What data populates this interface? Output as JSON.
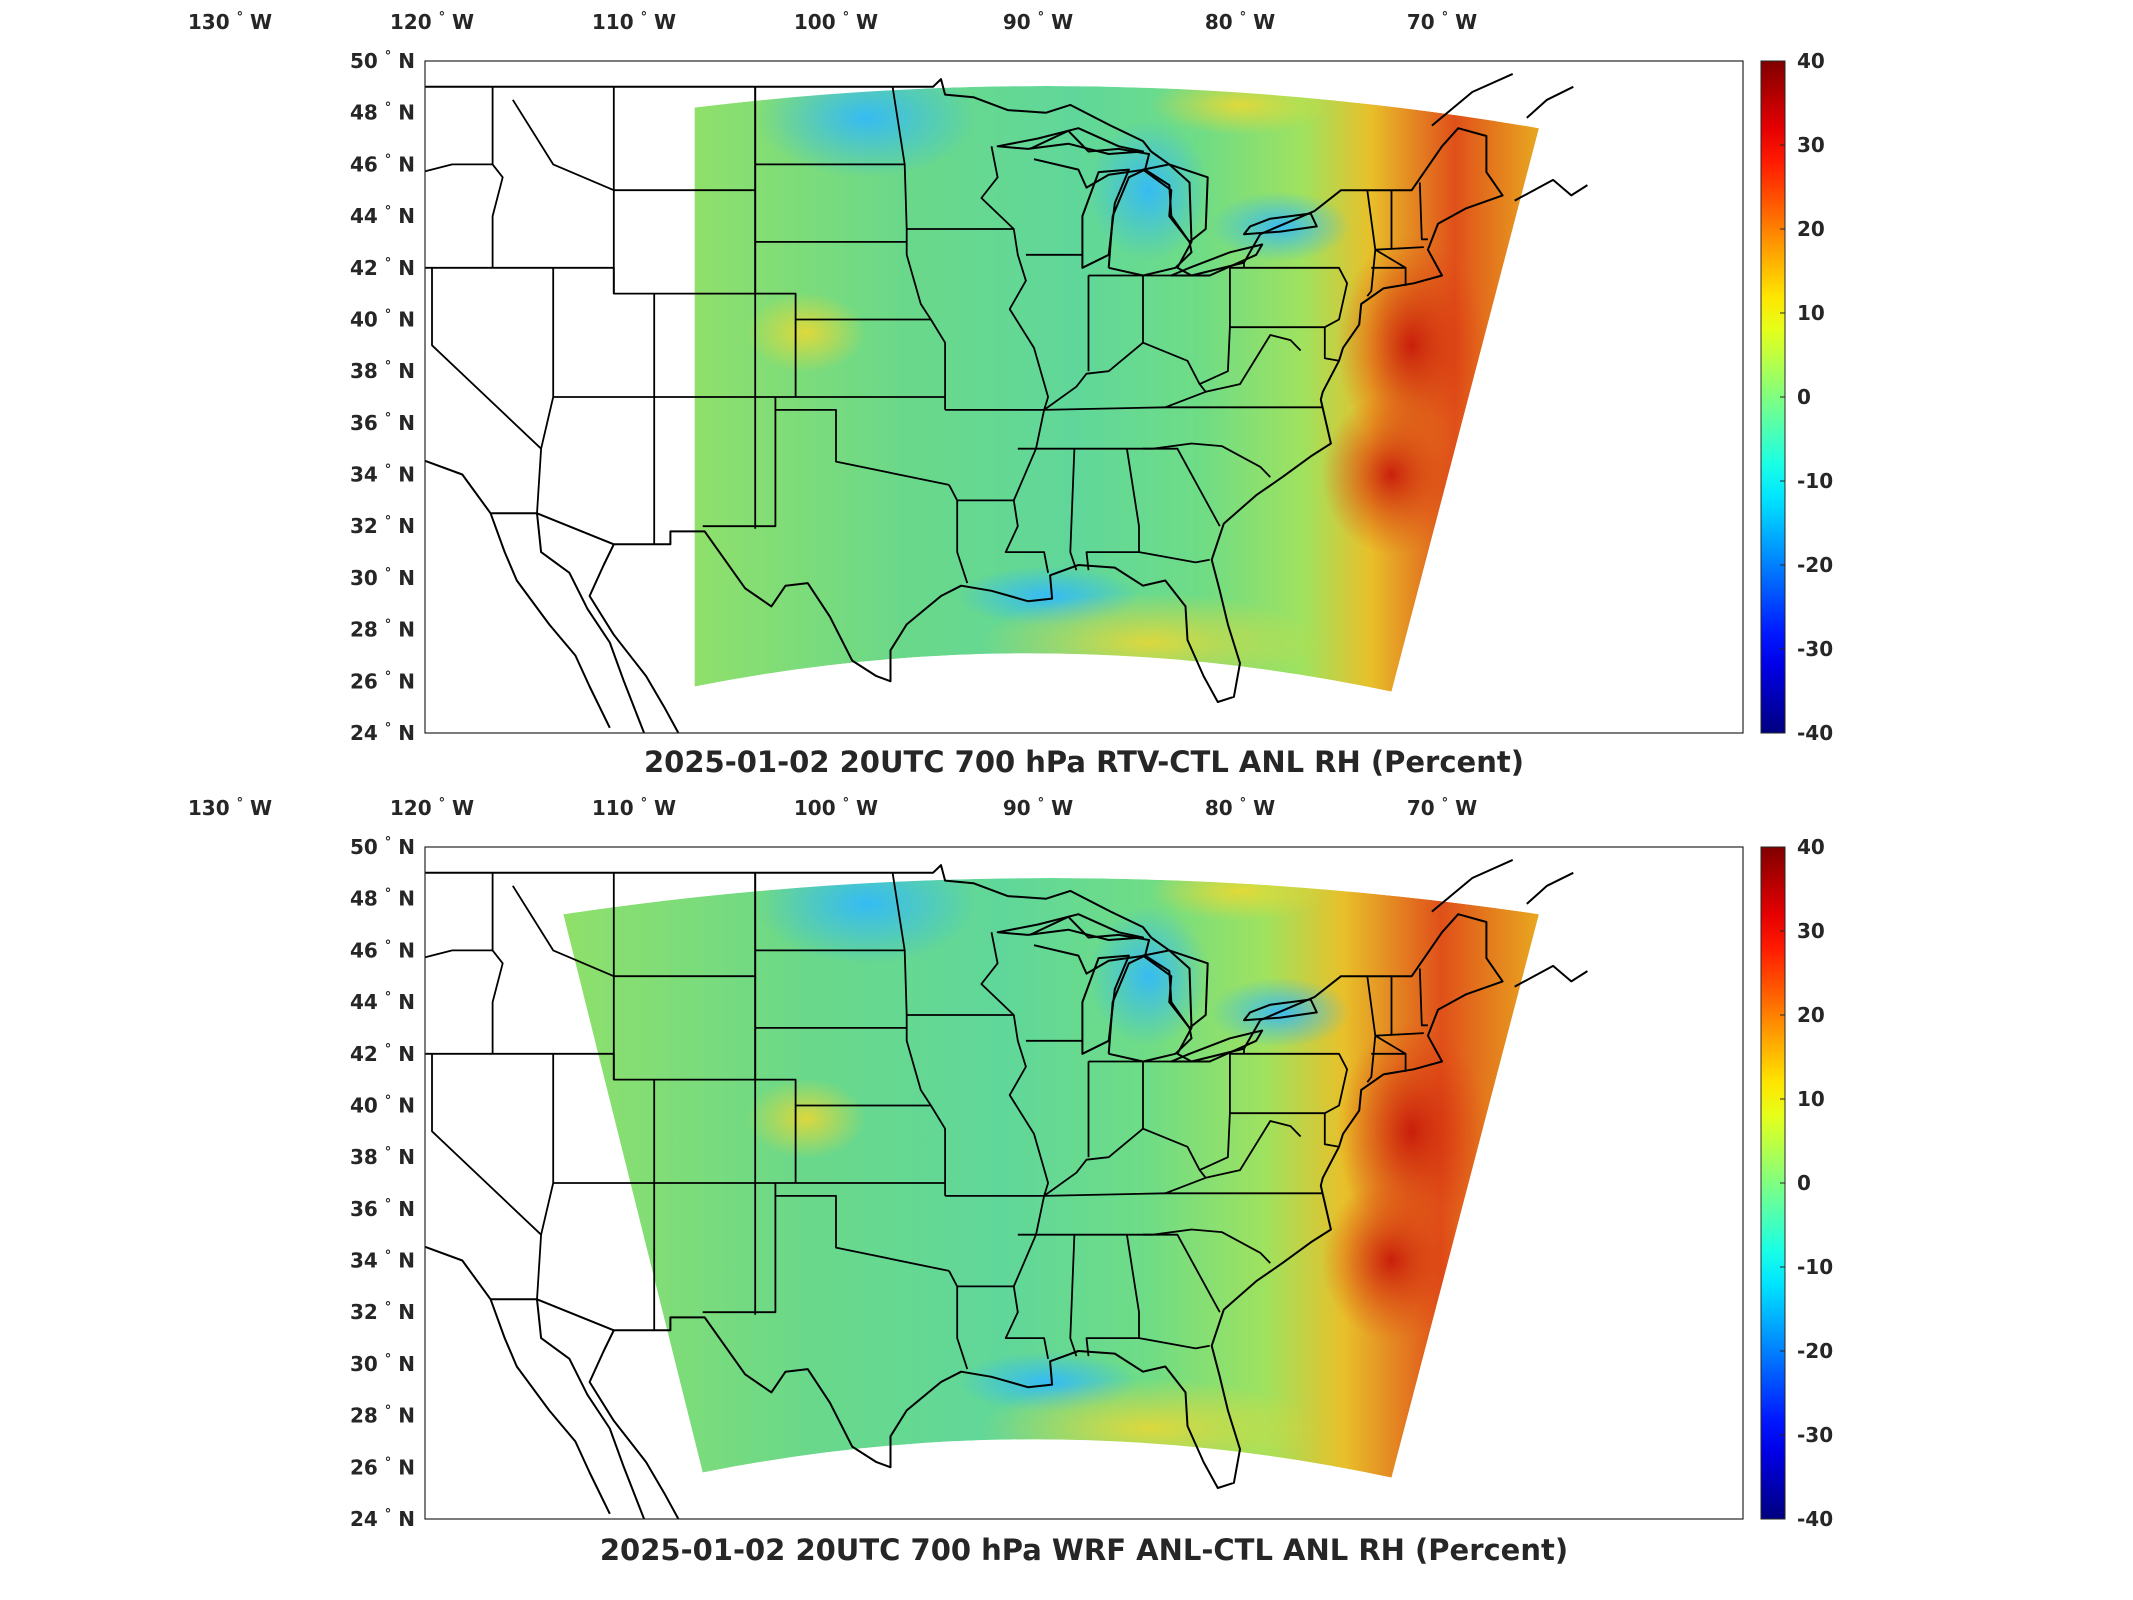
{
  "panels": [
    {
      "title": "2025-01-02 20UTC 700 hPa RTV-CTL ANL RH (Percent)",
      "domain_extent": "narrow"
    },
    {
      "title": "2025-01-02 20UTC 700 hPa WRF ANL-CTL ANL RH (Percent)",
      "domain_extent": "wide"
    }
  ],
  "axes": {
    "lon_ticks": [
      {
        "value": -130,
        "deg": "130",
        "hem": "W"
      },
      {
        "value": -120,
        "deg": "120",
        "hem": "W"
      },
      {
        "value": -110,
        "deg": "110",
        "hem": "W"
      },
      {
        "value": -100,
        "deg": "100",
        "hem": "W"
      },
      {
        "value": -90,
        "deg": "90",
        "hem": "W"
      },
      {
        "value": -80,
        "deg": "80",
        "hem": "W"
      },
      {
        "value": -70,
        "deg": "70",
        "hem": "W"
      }
    ],
    "lat_ticks": [
      {
        "value": 50,
        "deg": "50",
        "hem": "N"
      },
      {
        "value": 48,
        "deg": "48",
        "hem": "N"
      },
      {
        "value": 46,
        "deg": "46",
        "hem": "N"
      },
      {
        "value": 44,
        "deg": "44",
        "hem": "N"
      },
      {
        "value": 42,
        "deg": "42",
        "hem": "N"
      },
      {
        "value": 40,
        "deg": "40",
        "hem": "N"
      },
      {
        "value": 38,
        "deg": "38",
        "hem": "N"
      },
      {
        "value": 36,
        "deg": "36",
        "hem": "N"
      },
      {
        "value": 34,
        "deg": "34",
        "hem": "N"
      },
      {
        "value": 32,
        "deg": "32",
        "hem": "N"
      },
      {
        "value": 30,
        "deg": "30",
        "hem": "N"
      },
      {
        "value": 28,
        "deg": "28",
        "hem": "N"
      },
      {
        "value": 26,
        "deg": "26",
        "hem": "N"
      },
      {
        "value": 24,
        "deg": "24",
        "hem": "N"
      }
    ]
  },
  "colorbar": {
    "min": -40,
    "max": 40,
    "colormap": "jet",
    "ticks": [
      "40",
      "30",
      "20",
      "10",
      "0",
      "-10",
      "-20",
      "-30",
      "-40"
    ]
  },
  "colors": {
    "land_outline": "#000000",
    "frame": "#262626",
    "field_base": "#7fe07a",
    "positive_anomaly": "#d93010",
    "negative_anomaly": "#2f9bff"
  }
}
